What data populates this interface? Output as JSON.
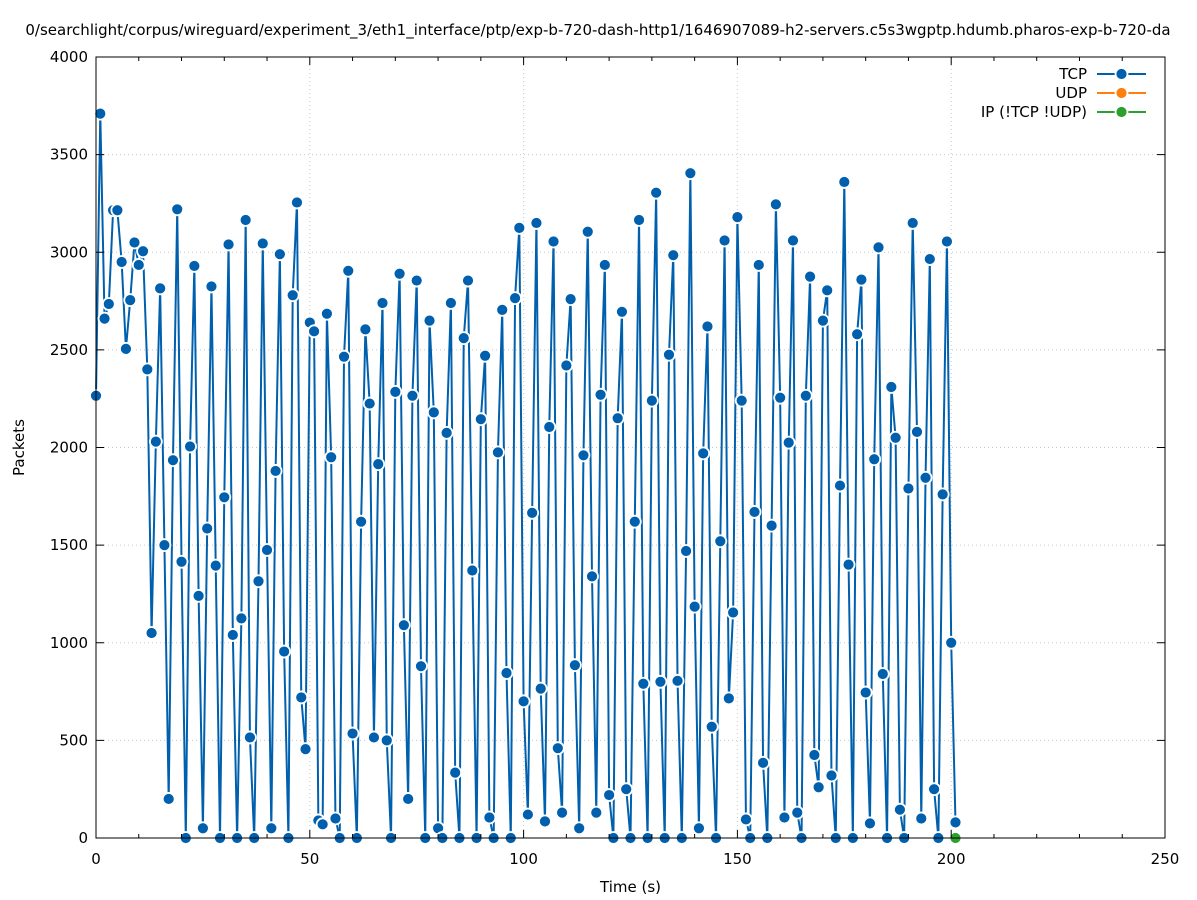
{
  "chart_data": {
    "type": "line",
    "title": "0/searchlight/corpus/wireguard/experiment_3/eth1_interface/ptp/exp-b-720-dash-http1/1646907089-h2-servers.c5s3wgptp.hdumb.pharos-exp-b-720-da",
    "xlabel": "Time (s)",
    "ylabel": "Packets",
    "xlim": [
      0,
      250
    ],
    "ylim": [
      0,
      4000
    ],
    "xticks": [
      0,
      50,
      100,
      150,
      200,
      250
    ],
    "yticks": [
      0,
      500,
      1000,
      1500,
      2000,
      2500,
      3000,
      3500,
      4000
    ],
    "grid": true,
    "legend_position": "top-right",
    "series": [
      {
        "name": "TCP",
        "color": "#0060ad",
        "x": [
          0,
          1,
          2,
          3,
          4,
          5,
          6,
          7,
          8,
          9,
          10,
          11,
          12,
          13,
          14,
          15,
          16,
          17,
          18,
          19,
          20,
          21,
          22,
          23,
          24,
          25,
          26,
          27,
          28,
          29,
          30,
          31,
          32,
          33,
          34,
          35,
          36,
          37,
          38,
          39,
          40,
          41,
          42,
          43,
          44,
          45,
          46,
          47,
          48,
          49,
          50,
          51,
          52,
          53,
          54,
          55,
          56,
          57,
          58,
          59,
          60,
          61,
          62,
          63,
          64,
          65,
          66,
          67,
          68,
          69,
          70,
          71,
          72,
          73,
          74,
          75,
          76,
          77,
          78,
          79,
          80,
          81,
          82,
          83,
          84,
          85,
          86,
          87,
          88,
          89,
          90,
          91,
          92,
          93,
          94,
          95,
          96,
          97,
          98,
          99,
          100,
          101,
          102,
          103,
          104,
          105,
          106,
          107,
          108,
          109,
          110,
          111,
          112,
          113,
          114,
          115,
          116,
          117,
          118,
          119,
          120,
          121,
          122,
          123,
          124,
          125,
          126,
          127,
          128,
          129,
          130,
          131,
          132,
          133,
          134,
          135,
          136,
          137,
          138,
          139,
          140,
          141,
          142,
          143,
          144,
          145,
          146,
          147,
          148,
          149,
          150,
          151,
          152,
          153,
          154,
          155,
          156,
          157,
          158,
          159,
          160,
          161,
          162,
          163,
          164,
          165,
          166,
          167,
          168,
          169,
          170,
          171,
          172,
          173,
          174,
          175,
          176,
          177,
          178,
          179,
          180,
          181,
          182,
          183,
          184,
          185,
          186,
          187,
          188,
          189,
          190,
          191,
          192,
          193,
          194,
          195,
          196,
          197,
          198,
          199,
          200,
          201
        ],
        "y": [
          2265,
          3710,
          2660,
          2735,
          3215,
          3215,
          2950,
          2505,
          2755,
          3050,
          2935,
          3005,
          2400,
          1050,
          2030,
          2815,
          1500,
          200,
          1935,
          3220,
          1415,
          0,
          2005,
          2930,
          1240,
          50,
          1585,
          2825,
          1395,
          0,
          1745,
          3040,
          1040,
          0,
          1125,
          3165,
          515,
          0,
          1315,
          3045,
          1475,
          50,
          1880,
          2990,
          955,
          0,
          2780,
          3255,
          720,
          455,
          2640,
          2595,
          90,
          70,
          2685,
          1950,
          100,
          0,
          2465,
          2905,
          535,
          0,
          1620,
          2605,
          2225,
          515,
          1915,
          2740,
          500,
          0,
          2285,
          2890,
          1090,
          200,
          2265,
          2855,
          880,
          0,
          2650,
          2180,
          50,
          0,
          2075,
          2740,
          335,
          0,
          2560,
          2855,
          1370,
          0,
          2145,
          2470,
          105,
          0,
          1975,
          2705,
          845,
          0,
          2765,
          3125,
          700,
          120,
          1665,
          3150,
          765,
          85,
          2105,
          3055,
          460,
          130,
          2420,
          2760,
          885,
          50,
          1960,
          3105,
          1340,
          130,
          2270,
          2935,
          220,
          0,
          2150,
          2695,
          250,
          0,
          1620,
          3165,
          790,
          0,
          2240,
          3305,
          800,
          0,
          2475,
          2985,
          805,
          0,
          1470,
          3405,
          1185,
          50,
          1970,
          2620,
          570,
          0,
          1520,
          3060,
          715,
          1155,
          3180,
          2240,
          95,
          0,
          1670,
          2935,
          385,
          0,
          1600,
          3245,
          2255,
          105,
          2025,
          3060,
          130,
          0,
          2265,
          2875,
          425,
          260,
          2650,
          2805,
          320,
          0,
          1805,
          3360,
          1400,
          0,
          2580,
          2860,
          745,
          75,
          1940,
          3025,
          840,
          0,
          2310,
          2050,
          145,
          0,
          1790,
          3150,
          2080,
          100,
          1845,
          2965,
          250,
          0,
          1760,
          3055,
          1000,
          80
        ]
      },
      {
        "name": "UDP",
        "color": "#ff7f0e",
        "x": [],
        "y": []
      },
      {
        "name": "IP (!TCP  !UDP)",
        "color": "#2ca02c",
        "x": [
          201
        ],
        "y": [
          0
        ]
      }
    ]
  }
}
